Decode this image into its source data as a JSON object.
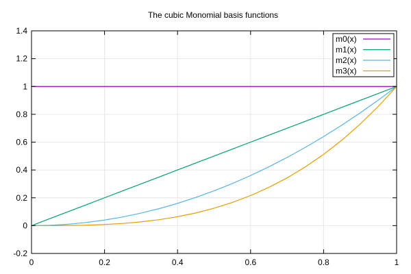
{
  "chart_data": {
    "type": "line",
    "title": "The cubic Monomial basis functions",
    "xlabel": "",
    "ylabel": "",
    "xlim": [
      0,
      1
    ],
    "ylim": [
      -0.2,
      1.4
    ],
    "x_ticks": [
      0,
      0.2,
      0.4,
      0.6,
      0.8,
      1
    ],
    "x_tick_labels": [
      "0",
      "0.2",
      "0.4",
      "0.6",
      "0.8",
      "1"
    ],
    "y_ticks": [
      -0.2,
      0,
      0.2,
      0.4,
      0.6,
      0.8,
      1,
      1.2,
      1.4
    ],
    "y_tick_labels": [
      "-0.2",
      "0",
      "0.2",
      "0.4",
      "0.6",
      "0.8",
      "1",
      "1.2",
      "1.4"
    ],
    "grid": true,
    "legend_position": "top-right",
    "x": [
      0,
      0.05,
      0.1,
      0.15,
      0.2,
      0.25,
      0.3,
      0.35,
      0.4,
      0.45,
      0.5,
      0.55,
      0.6,
      0.65,
      0.7,
      0.75,
      0.8,
      0.85,
      0.9,
      0.95,
      1
    ],
    "series": [
      {
        "name": "m0(x)",
        "color": "#9400d3",
        "values": [
          1,
          1,
          1,
          1,
          1,
          1,
          1,
          1,
          1,
          1,
          1,
          1,
          1,
          1,
          1,
          1,
          1,
          1,
          1,
          1,
          1
        ]
      },
      {
        "name": "m1(x)",
        "color": "#009e73",
        "values": [
          0,
          0.05,
          0.1,
          0.15,
          0.2,
          0.25,
          0.3,
          0.35,
          0.4,
          0.45,
          0.5,
          0.55,
          0.6,
          0.65,
          0.7,
          0.75,
          0.8,
          0.85,
          0.9,
          0.95,
          1
        ]
      },
      {
        "name": "m2(x)",
        "color": "#56b4e9",
        "values": [
          0,
          0.0025,
          0.01,
          0.0225,
          0.04,
          0.0625,
          0.09,
          0.1225,
          0.16,
          0.2025,
          0.25,
          0.3025,
          0.36,
          0.4225,
          0.49,
          0.5625,
          0.64,
          0.7225,
          0.81,
          0.9025,
          1
        ]
      },
      {
        "name": "m3(x)",
        "color": "#e69f00",
        "values": [
          0,
          0.000125,
          0.001,
          0.003375,
          0.008,
          0.015625,
          0.027,
          0.042875,
          0.064,
          0.091125,
          0.125,
          0.166375,
          0.216,
          0.274625,
          0.343,
          0.421875,
          0.512,
          0.614125,
          0.729,
          0.857375,
          1
        ]
      }
    ]
  }
}
